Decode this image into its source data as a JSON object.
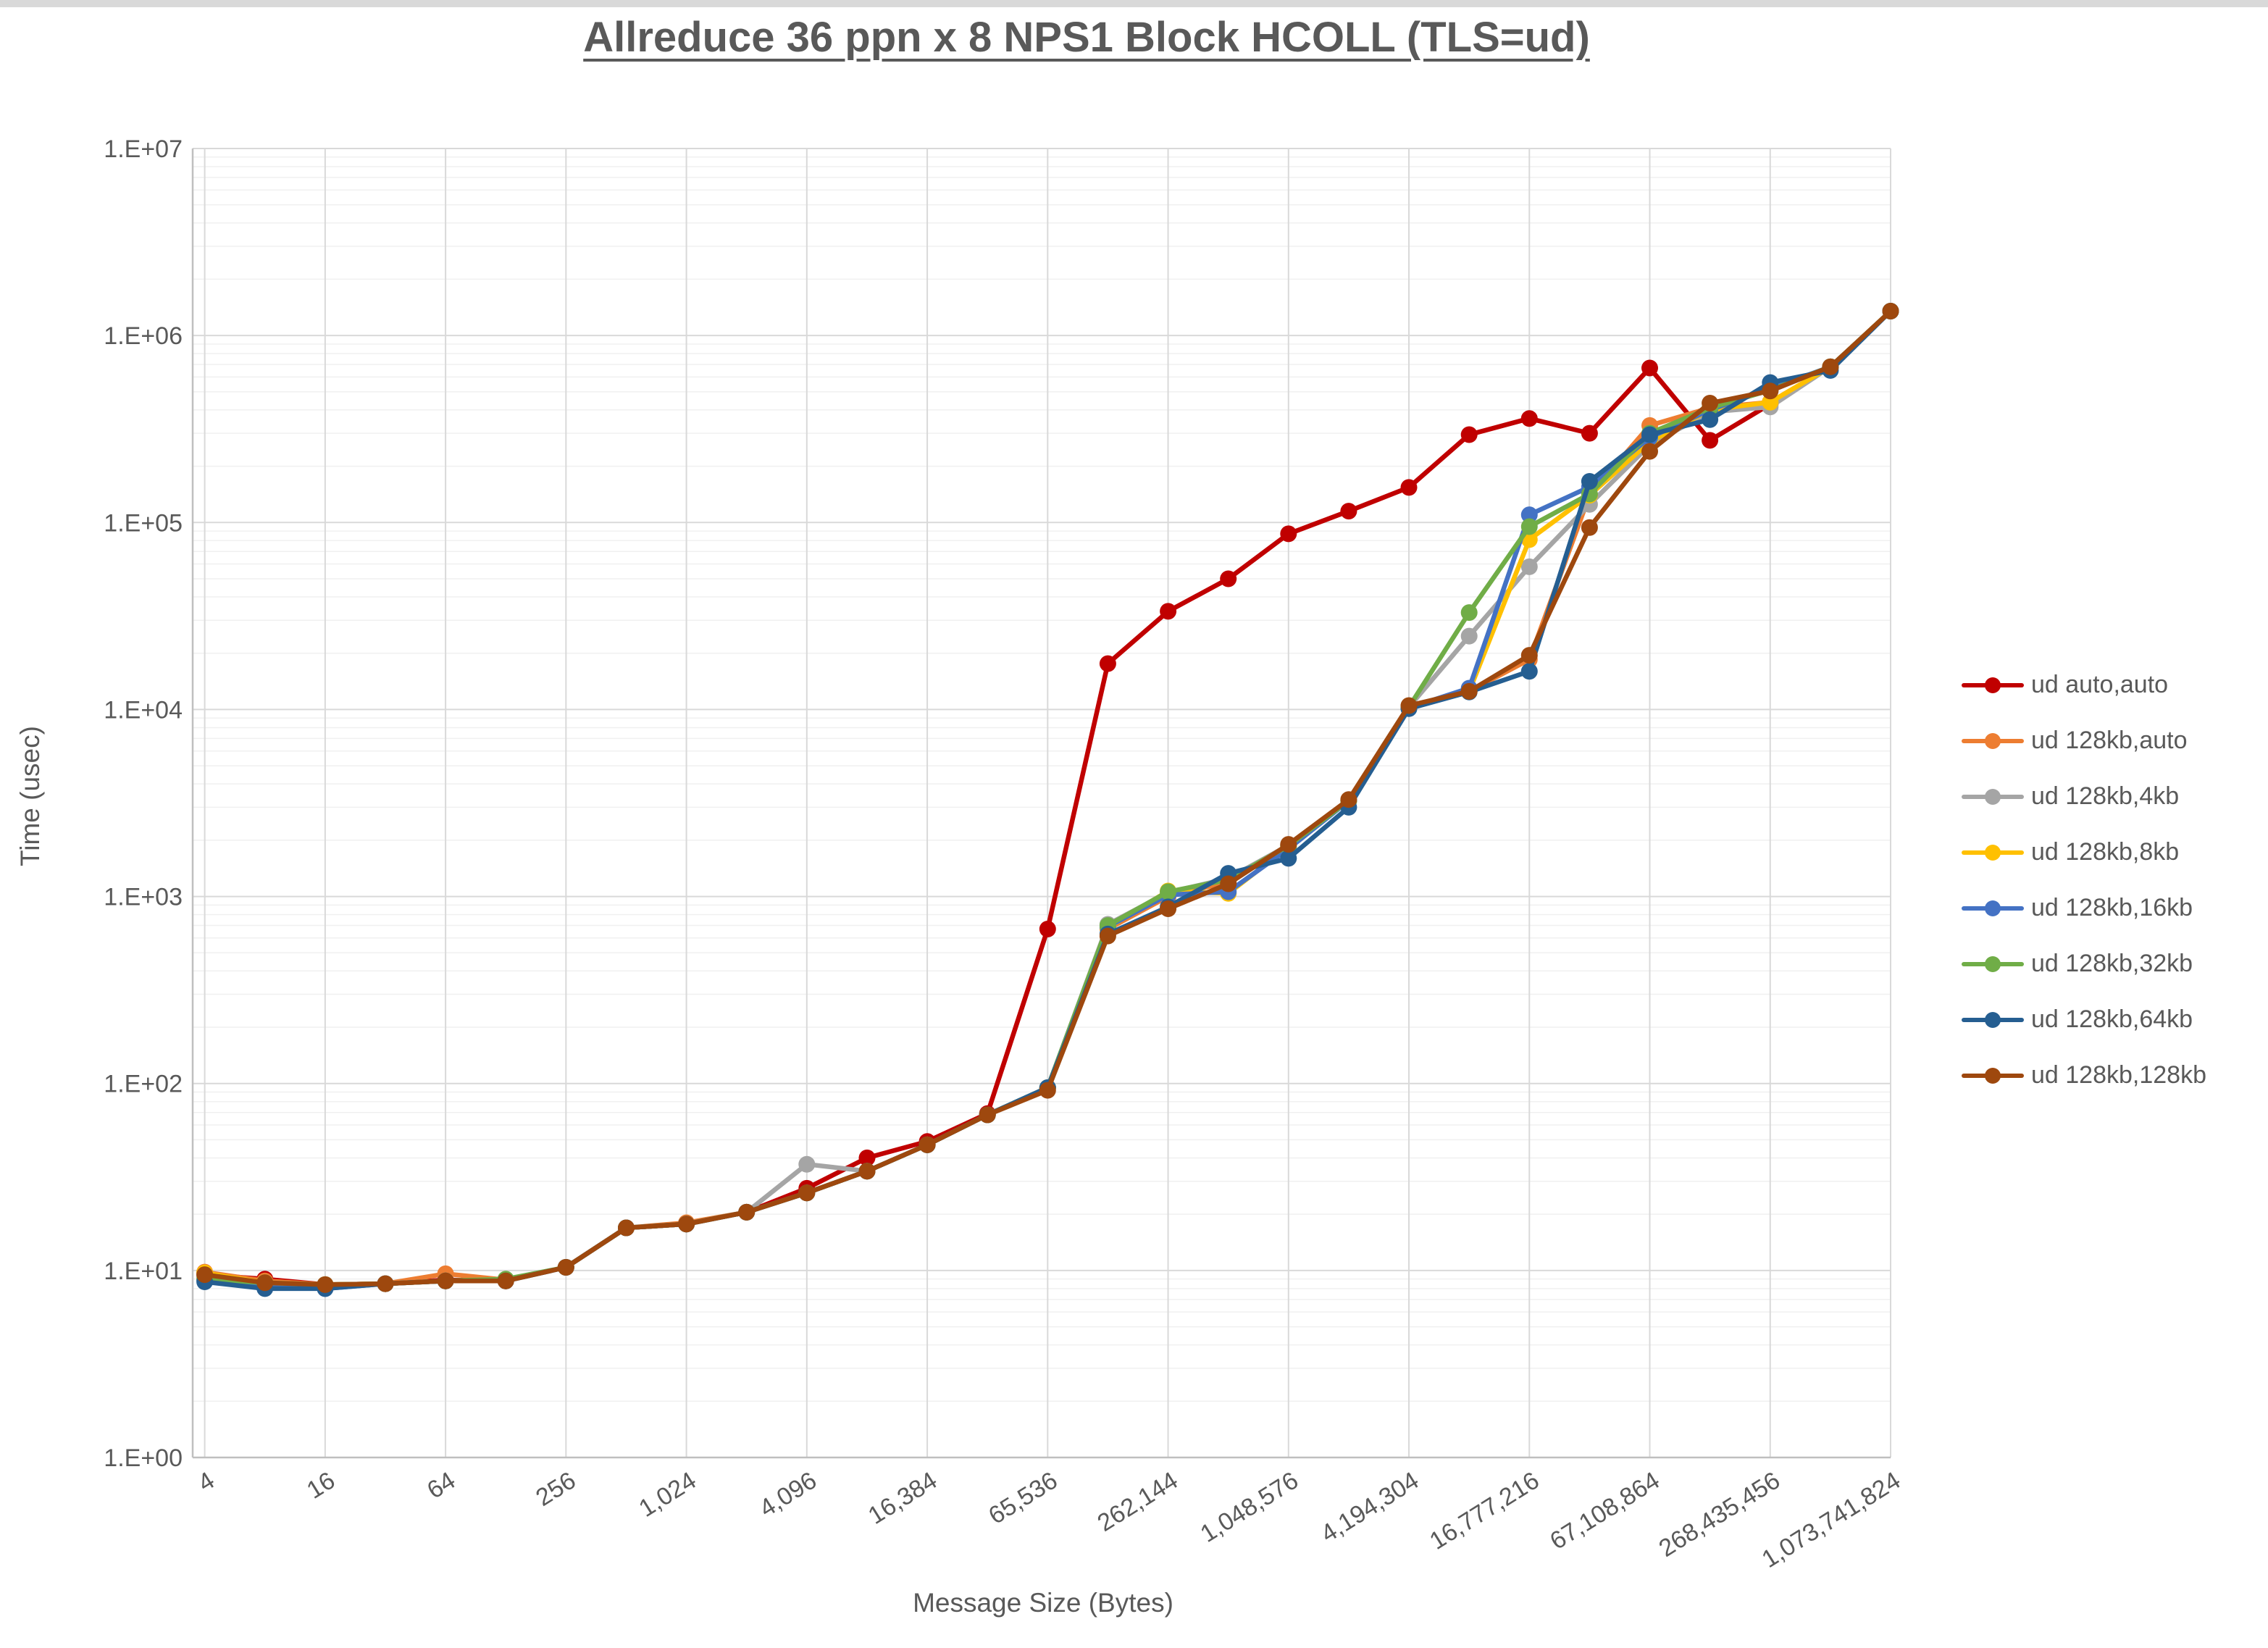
{
  "title": "Allreduce 36 ppn x 8 NPS1 Block HCOLL (TLS=ud)",
  "y_axis": {
    "label": "Time (usec)",
    "tick_labels": [
      "1.E+00",
      "1.E+01",
      "1.E+02",
      "1.E+03",
      "1.E+04",
      "1.E+05",
      "1.E+06",
      "1.E+07"
    ]
  },
  "x_axis": {
    "label": "Message Size (Bytes)",
    "tick_values": [
      4,
      16,
      64,
      256,
      1024,
      4096,
      16384,
      65536,
      262144,
      1048576,
      4194304,
      16777216,
      67108864,
      268435456,
      1073741824
    ],
    "tick_labels": [
      "4",
      "16",
      "64",
      "256",
      "1,024",
      "4,096",
      "16,384",
      "65,536",
      "262,144",
      "1,048,576",
      "4,194,304",
      "16,777,216",
      "67,108,864",
      "268,435,456",
      "1,073,741,824"
    ]
  },
  "colors": {
    "text": "#595959",
    "grid_major": "#d9d9d9",
    "grid_minor": "#f0f0f0",
    "axis_line": "#bfbfbf"
  },
  "chart_data": {
    "type": "line",
    "x_scale": "log2",
    "y_scale": "log10",
    "xlim": [
      4,
      1073741824
    ],
    "ylim": [
      1,
      10000000
    ],
    "grid": true,
    "legend_position": "right",
    "x": [
      4,
      8,
      16,
      32,
      64,
      128,
      256,
      512,
      1024,
      2048,
      4096,
      8192,
      16384,
      32768,
      65536,
      131072,
      262144,
      524288,
      1048576,
      2097152,
      4194304,
      8388608,
      16777216,
      33554432,
      67108864,
      134217728,
      268435456,
      536870912,
      1073741824
    ],
    "series": [
      {
        "name": "ud auto,auto",
        "color": "#C00000",
        "values": [
          9.5,
          9.0,
          8.4,
          8.5,
          8.9,
          8.8,
          10.4,
          16.9,
          17.7,
          20.5,
          27.5,
          40,
          49,
          69,
          670,
          17600,
          33500,
          50000,
          87000,
          115000,
          154000,
          295000,
          360000,
          300000,
          670000,
          275000,
          430000,
          null,
          null
        ]
      },
      {
        "name": "ud 128kb,auto",
        "color": "#ED7D31",
        "values": [
          9.8,
          8.8,
          8.4,
          8.5,
          9.6,
          8.9,
          10.4,
          16.9,
          18.0,
          20.5,
          26,
          34,
          47,
          68,
          95,
          670,
          1000,
          1200,
          1860,
          3250,
          10400,
          12500,
          18500,
          140000,
          330000,
          410000,
          440000,
          680000,
          1350000
        ]
      },
      {
        "name": "ud 128kb,4kb",
        "color": "#A5A5A5",
        "values": [
          9.3,
          8.6,
          8.4,
          8.5,
          8.8,
          8.8,
          10.4,
          16.9,
          17.7,
          20.5,
          37,
          34,
          47,
          68,
          95,
          710,
          1050,
          1250,
          1880,
          3250,
          10300,
          24700,
          58000,
          125000,
          260000,
          390000,
          415000,
          680000,
          1350000
        ]
      },
      {
        "name": "ud 128kb,8kb",
        "color": "#FFC000",
        "values": [
          9.7,
          8.6,
          8.4,
          8.5,
          8.8,
          8.8,
          10.4,
          16.9,
          17.7,
          20.5,
          26,
          34,
          47,
          68,
          95,
          680,
          1070,
          1040,
          1840,
          3250,
          10200,
          12500,
          81000,
          140000,
          270000,
          400000,
          440000,
          680000,
          1350000
        ]
      },
      {
        "name": "ud 128kb,16kb",
        "color": "#4472C4",
        "values": [
          8.9,
          8.1,
          8.0,
          8.5,
          8.8,
          8.8,
          10.4,
          16.9,
          17.7,
          20.5,
          26,
          34,
          47,
          68,
          95,
          690,
          1020,
          1060,
          1800,
          3250,
          10200,
          13000,
          110000,
          155000,
          285000,
          400000,
          520000,
          680000,
          1350000
        ]
      },
      {
        "name": "ud 128kb,32kb",
        "color": "#70AD47",
        "values": [
          9.0,
          8.6,
          8.4,
          8.5,
          8.8,
          9.0,
          10.4,
          16.9,
          17.7,
          20.5,
          26,
          34,
          47,
          68,
          95,
          700,
          1060,
          1230,
          1870,
          3250,
          10300,
          33000,
          95000,
          142000,
          300000,
          410000,
          510000,
          680000,
          1350000
        ]
      },
      {
        "name": "ud 128kb,64kb",
        "color": "#255E91",
        "values": [
          8.7,
          8.0,
          8.0,
          8.5,
          8.8,
          8.8,
          10.4,
          16.9,
          17.7,
          20.5,
          26,
          34,
          47,
          68,
          95,
          630,
          880,
          1330,
          1600,
          3000,
          10100,
          12400,
          16000,
          166000,
          295000,
          355000,
          560000,
          650000,
          1350000
        ]
      },
      {
        "name": "ud 128kb,128kb",
        "color": "#9E480E",
        "values": [
          9.5,
          8.6,
          8.4,
          8.5,
          8.8,
          8.8,
          10.4,
          16.9,
          17.7,
          20.5,
          26,
          34,
          47,
          68,
          92,
          615,
          860,
          1170,
          1900,
          3300,
          10500,
          12500,
          19500,
          94000,
          240000,
          435000,
          505000,
          680000,
          1350000
        ]
      }
    ]
  }
}
